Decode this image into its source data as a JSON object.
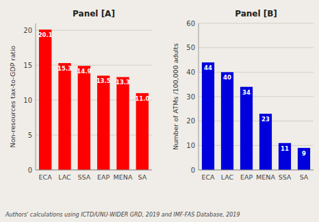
{
  "chart_data": [
    {
      "type": "bar",
      "title": "Panel [A]",
      "categories": [
        "ECA",
        "LAC",
        "SSA",
        "EAP",
        "MENA",
        "SA"
      ],
      "values": [
        20.1,
        15.3,
        14.9,
        13.5,
        13.3,
        11.0
      ],
      "value_labels": [
        "20.1",
        "15.3",
        "14.9",
        "13.5",
        "13.3",
        "11.0"
      ],
      "color": "#ff0000",
      "y_label": "Non-resources tax-to-GDP ratio",
      "ylim": [
        0,
        21
      ],
      "yticks": [
        0,
        5,
        10,
        15,
        20
      ],
      "grid": true,
      "data_labels": true
    },
    {
      "type": "bar",
      "title": "Panel [B]",
      "categories": [
        "ECA",
        "LAC",
        "EAP",
        "MENA",
        "SSA",
        "SA"
      ],
      "values": [
        44,
        40,
        34,
        23,
        11,
        9
      ],
      "color": "#0000dd",
      "y_label": "Number of ATMs /100,000 adults",
      "ylim": [
        0,
        60
      ],
      "yticks": [
        0,
        10,
        20,
        30,
        40,
        50,
        60
      ],
      "grid": true,
      "data_labels": true
    }
  ],
  "footnote": "Authors' calculations using ICTD/UNU-WIDER GRD, 2019 and IMF-FAS Database, 2019"
}
